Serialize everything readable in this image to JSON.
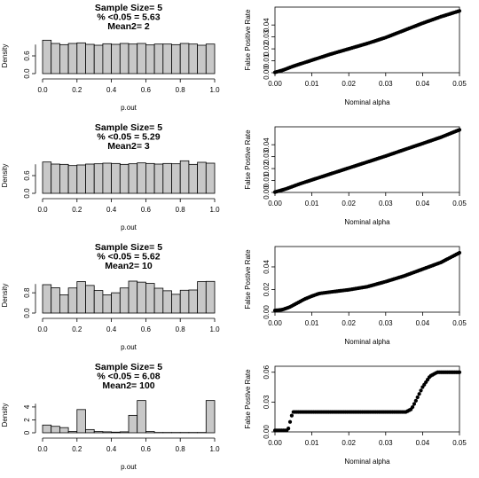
{
  "chart_data": [
    {
      "type": "bar",
      "title": [
        "Sample Size= 5",
        "% <0.05 = 5.63",
        "Mean2= 2"
      ],
      "xlabel": "p.out",
      "ylabel": "Density",
      "xlim": [
        0,
        1
      ],
      "ylim": [
        0,
        1.2
      ],
      "xticks": [
        "0.0",
        "0.2",
        "0.4",
        "0.6",
        "0.8",
        "1.0"
      ],
      "yticks": [
        "0.0",
        "0.6"
      ],
      "bin_width": 0.05,
      "values": [
        1.13,
        1.02,
        0.98,
        1.02,
        1.04,
        0.99,
        0.96,
        1.01,
        0.99,
        1.02,
        1.0,
        1.02,
        0.97,
        1.0,
        1.0,
        0.98,
        1.02,
        1.0,
        0.96,
        1.0
      ]
    },
    {
      "type": "line",
      "xlabel": "Nominal alpha",
      "ylabel": "False Positive Rate",
      "xlim": [
        0,
        0.05
      ],
      "ylim": [
        0,
        0.055
      ],
      "xticks": [
        "0.00",
        "0.01",
        "0.02",
        "0.03",
        "0.04",
        "0.05"
      ],
      "yticks": [
        "0.00",
        "0.01",
        "0.02",
        "0.03",
        "0.04"
      ],
      "points": [
        [
          0,
          0.0003
        ],
        [
          0.002,
          0.002
        ],
        [
          0.005,
          0.0055
        ],
        [
          0.01,
          0.0105
        ],
        [
          0.015,
          0.0155
        ],
        [
          0.02,
          0.02
        ],
        [
          0.025,
          0.0245
        ],
        [
          0.03,
          0.0295
        ],
        [
          0.035,
          0.0355
        ],
        [
          0.04,
          0.0415
        ],
        [
          0.045,
          0.047
        ],
        [
          0.05,
          0.0518
        ]
      ]
    },
    {
      "type": "bar",
      "title": [
        "Sample Size= 5",
        "% <0.05 = 5.29",
        "Mean2= 3"
      ],
      "xlabel": "p.out",
      "ylabel": "Density",
      "xlim": [
        0,
        1
      ],
      "ylim": [
        0,
        1.2
      ],
      "xticks": [
        "0.0",
        "0.2",
        "0.4",
        "0.6",
        "0.8",
        "1.0"
      ],
      "yticks": [
        "0.0",
        "0.6"
      ],
      "bin_width": 0.05,
      "values": [
        1.06,
        0.99,
        0.98,
        0.94,
        0.96,
        0.99,
        1.0,
        1.02,
        1.01,
        0.98,
        1.0,
        1.03,
        1.01,
        0.99,
        1.01,
        1.0,
        1.1,
        0.98,
        1.05,
        1.02
      ]
    },
    {
      "type": "line",
      "xlabel": "Nominal alpha",
      "ylabel": "False Postive Rate",
      "xlim": [
        0,
        0.05
      ],
      "ylim": [
        0,
        0.055
      ],
      "xticks": [
        "0.00",
        "0.01",
        "0.02",
        "0.03",
        "0.04",
        "0.05"
      ],
      "yticks": [
        "0.00",
        "0.01",
        "0.02",
        "0.03",
        "0.04"
      ],
      "points": [
        [
          0,
          0.0003
        ],
        [
          0.003,
          0.003
        ],
        [
          0.007,
          0.0075
        ],
        [
          0.01,
          0.0105
        ],
        [
          0.015,
          0.0155
        ],
        [
          0.02,
          0.0205
        ],
        [
          0.025,
          0.0255
        ],
        [
          0.03,
          0.0305
        ],
        [
          0.035,
          0.0358
        ],
        [
          0.04,
          0.041
        ],
        [
          0.045,
          0.0463
        ],
        [
          0.05,
          0.0525
        ]
      ]
    },
    {
      "type": "bar",
      "title": [
        "Sample Size= 5",
        "% <0.05 = 5.62",
        "Mean2= 10"
      ],
      "xlabel": "p.out",
      "ylabel": "Density",
      "xlim": [
        0,
        1
      ],
      "ylim": [
        0,
        1.4
      ],
      "xticks": [
        "0.0",
        "0.2",
        "0.4",
        "0.6",
        "0.8",
        "1.0"
      ],
      "yticks": [
        "0.0",
        "0.8"
      ],
      "bin_width": 0.05,
      "values": [
        1.12,
        1.0,
        0.72,
        0.99,
        1.24,
        1.09,
        0.89,
        0.72,
        0.8,
        0.99,
        1.26,
        1.22,
        1.17,
        0.98,
        0.88,
        0.74,
        0.9,
        0.91,
        1.24,
        1.25
      ]
    },
    {
      "type": "line",
      "xlabel": "Nominal alpha",
      "ylabel": "False Postive Rate",
      "xlim": [
        0,
        0.05
      ],
      "ylim": [
        0,
        0.058
      ],
      "xticks": [
        "0.00",
        "0.01",
        "0.02",
        "0.03",
        "0.04",
        "0.05"
      ],
      "yticks": [
        "0.00",
        "0.02",
        "0.04"
      ],
      "points": [
        [
          0,
          0.0015
        ],
        [
          0.002,
          0.0022
        ],
        [
          0.004,
          0.0045
        ],
        [
          0.006,
          0.008
        ],
        [
          0.008,
          0.0115
        ],
        [
          0.01,
          0.0142
        ],
        [
          0.012,
          0.0165
        ],
        [
          0.015,
          0.0178
        ],
        [
          0.02,
          0.0198
        ],
        [
          0.025,
          0.0225
        ],
        [
          0.03,
          0.027
        ],
        [
          0.035,
          0.032
        ],
        [
          0.04,
          0.038
        ],
        [
          0.045,
          0.044
        ],
        [
          0.05,
          0.0525
        ]
      ]
    },
    {
      "type": "bar",
      "title": [
        "Sample Size= 5",
        "% <0.05 = 6.08",
        "Mean2= 100"
      ],
      "xlabel": "p.out",
      "ylabel": "Density",
      "xlim": [
        0,
        1
      ],
      "ylim": [
        0,
        5.5
      ],
      "xticks": [
        "0.0",
        "0.2",
        "0.4",
        "0.6",
        "0.8",
        "1.0"
      ],
      "yticks": [
        "0",
        "2",
        "4"
      ],
      "bin_width": 0.05,
      "values": [
        1.2,
        1.0,
        0.8,
        0.2,
        3.6,
        0.5,
        0.2,
        0.15,
        0.1,
        0.15,
        2.7,
        5.0,
        0.2,
        0.05,
        0.05,
        0.05,
        0.05,
        0.05,
        0.05,
        5.0
      ]
    },
    {
      "type": "line",
      "xlabel": "Nominal alpha",
      "ylabel": "False Postive Rate",
      "xlim": [
        0,
        0.05
      ],
      "ylim": [
        0,
        0.066
      ],
      "xticks": [
        "0.00",
        "0.01",
        "0.02",
        "0.03",
        "0.04",
        "0.05"
      ],
      "yticks": [
        "0.00",
        "0.03",
        "0.06"
      ],
      "points": [
        [
          0,
          0.0015
        ],
        [
          0.0035,
          0.0015
        ],
        [
          0.0045,
          0.016
        ],
        [
          0.005,
          0.02
        ],
        [
          0.02,
          0.02
        ],
        [
          0.03,
          0.02
        ],
        [
          0.0355,
          0.02
        ],
        [
          0.037,
          0.023
        ],
        [
          0.038,
          0.03
        ],
        [
          0.04,
          0.045
        ],
        [
          0.042,
          0.056
        ],
        [
          0.044,
          0.06
        ],
        [
          0.05,
          0.06
        ]
      ]
    }
  ]
}
